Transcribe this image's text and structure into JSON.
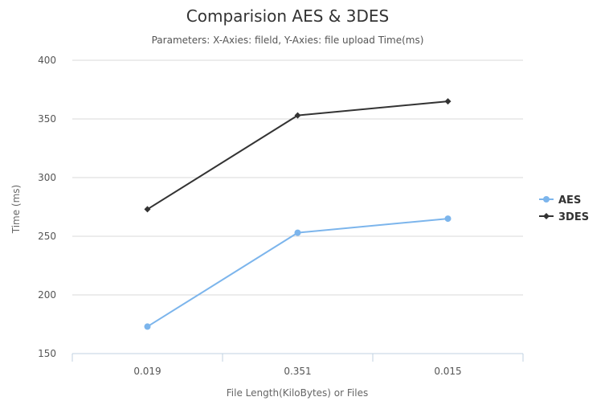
{
  "chart_data": {
    "type": "line",
    "title": "Comparision AES & 3DES",
    "subtitle": "Parameters: X-Axies: fileld, Y-Axies: file upload Time(ms)",
    "xlabel": "File Length(KiloBytes) or Files",
    "ylabel": "Time (ms)",
    "categories": [
      "0.019",
      "0.351",
      "0.015"
    ],
    "ylim": [
      150,
      400
    ],
    "yticks": [
      150,
      200,
      250,
      300,
      350,
      400
    ],
    "grid": true,
    "legend": "right",
    "series": [
      {
        "name": "AES",
        "values": [
          173,
          253,
          265
        ],
        "color": "#7cb5ec",
        "marker": "circle"
      },
      {
        "name": "3DES",
        "values": [
          273,
          353,
          365
        ],
        "color": "#333333",
        "marker": "diamond"
      }
    ]
  }
}
